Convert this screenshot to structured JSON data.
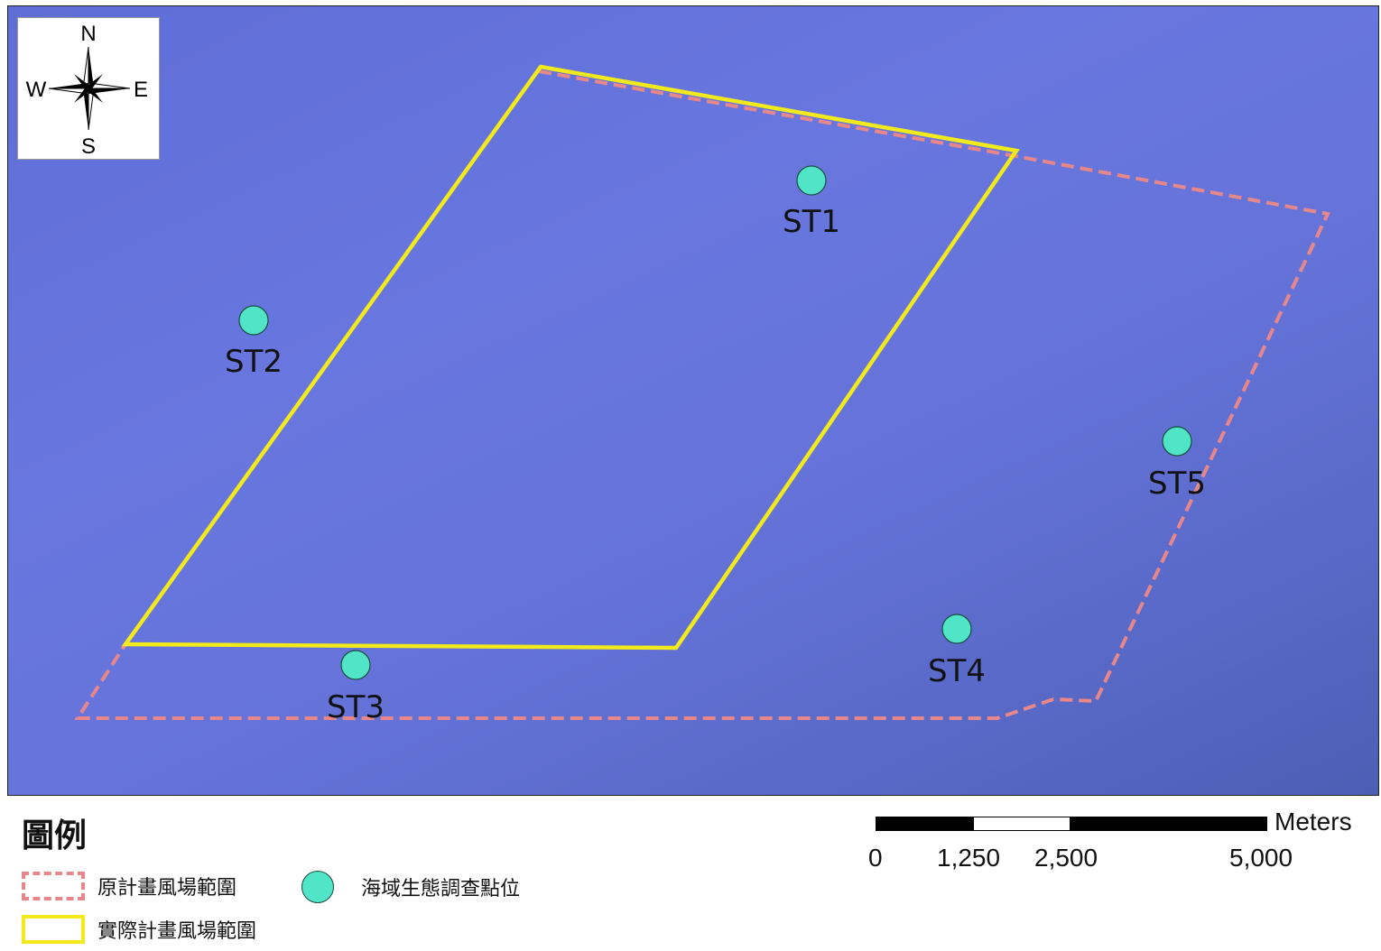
{
  "compass": {
    "north": "N",
    "south": "S",
    "east": "E",
    "west": "W"
  },
  "stations": [
    {
      "id": "ST1",
      "label": "ST1"
    },
    {
      "id": "ST2",
      "label": "ST2"
    },
    {
      "id": "ST3",
      "label": "ST3"
    },
    {
      "id": "ST4",
      "label": "ST4"
    },
    {
      "id": "ST5",
      "label": "ST5"
    }
  ],
  "legend": {
    "title": "圖例",
    "original_area": "原計畫風場範圍",
    "actual_area": "實際計畫風場範圍",
    "survey_points": "海域生態調查點位"
  },
  "scale": {
    "unit": "Meters",
    "ticks": [
      "0",
      "1,250",
      "2,500",
      "5,000"
    ]
  },
  "colors": {
    "sea": "#6573d9",
    "original_boundary": "#e8878a",
    "actual_boundary": "#f2ea1a",
    "survey_point": "#4fe5c6"
  }
}
